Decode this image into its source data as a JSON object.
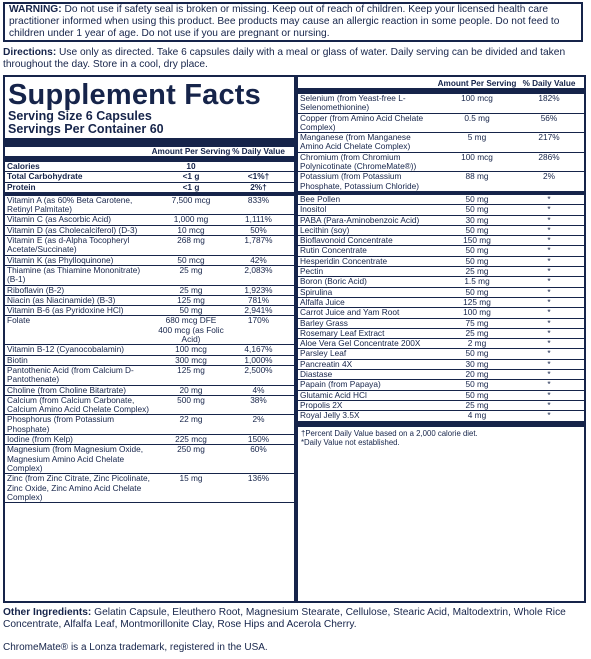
{
  "warning": {
    "label": "WARNING:",
    "text": " Do not use if safety seal is broken or missing. Keep out of reach of children. Keep your licensed health care practitioner informed when using this product. Bee products may cause an allergic reaction in some people. Do not feed to children under 1 year of age. Do not use if you are pregnant or nursing."
  },
  "directions": {
    "label": "Directions:",
    "text": " Use only as directed. Take 6 capsules daily with a meal or glass of water. Daily serving can be divided and taken throughout the day. Store in a cool, dry place."
  },
  "facts": {
    "title": "Supplement Facts",
    "serving_size": "Serving Size 6 Capsules",
    "servings_per_container": "Servings Per Container 60",
    "col_amount": "Amount Per Serving",
    "col_dv": "% Daily Value"
  },
  "left_rows": [
    {
      "name": "Calories",
      "amount": "10",
      "dv": "",
      "bold": true
    },
    {
      "name": "Total Carbohydrate",
      "amount": "<1 g",
      "dv": "<1%†",
      "bold": true
    },
    {
      "name": "Protein",
      "amount": "<1 g",
      "dv": "2%†",
      "bold": true,
      "thick": true
    },
    {
      "name": "Vitamin A (as 60% Beta Carotene, Retinyl Palmitate)",
      "amount": "7,500 mcg",
      "dv": "833%"
    },
    {
      "name": "Vitamin C (as Ascorbic Acid)",
      "amount": "1,000 mg",
      "dv": "1,111%"
    },
    {
      "name": "Vitamin D (as Cholecalciferol) (D-3)",
      "amount": "10 mcg",
      "dv": "50%"
    },
    {
      "name": "Vitamin E (as d-Alpha Tocopheryl Acetate/Succinate)",
      "amount": "268 mg",
      "dv": "1,787%"
    },
    {
      "name": "Vitamin K (as Phylloquinone)",
      "amount": "50 mcg",
      "dv": "42%"
    },
    {
      "name": "Thiamine (as Thiamine Mononitrate) (B-1)",
      "amount": "25 mg",
      "dv": "2,083%"
    },
    {
      "name": "Riboflavin (B-2)",
      "amount": "25 mg",
      "dv": "1,923%"
    },
    {
      "name": "Niacin (as Niacinamide) (B-3)",
      "amount": "125 mg",
      "dv": "781%"
    },
    {
      "name": "Vitamin B-6 (as Pyridoxine HCl)",
      "amount": "50 mg",
      "dv": "2,941%"
    },
    {
      "name": "Folate",
      "amount": "680 mcg DFE\n400 mcg (as Folic Acid)",
      "dv": "170%"
    },
    {
      "name": "Vitamin B-12 (Cyanocobalamin)",
      "amount": "100 mcg",
      "dv": "4,167%"
    },
    {
      "name": "Biotin",
      "amount": "300 mcg",
      "dv": "1,000%"
    },
    {
      "name": "Pantothenic Acid (from Calcium D-Pantothenate)",
      "amount": "125 mg",
      "dv": "2,500%"
    },
    {
      "name": "Choline (from Choline Bitartrate)",
      "amount": "20 mg",
      "dv": "4%"
    },
    {
      "name": "Calcium (from Calcium Carbonate, Calcium Amino Acid Chelate Complex)",
      "amount": "500 mg",
      "dv": "38%"
    },
    {
      "name": "Phosphorus (from Potassium Phosphate)",
      "amount": "22 mg",
      "dv": "2%"
    },
    {
      "name": "Iodine (from Kelp)",
      "amount": "225 mcg",
      "dv": "150%"
    },
    {
      "name": "Magnesium (from Magnesium Oxide, Magnesium Amino Acid Chelate Complex)",
      "amount": "250 mg",
      "dv": "60%"
    },
    {
      "name": "Zinc (from Zinc Citrate, Zinc Picolinate, Zinc Oxide, Zinc Amino Acid Chelate Complex)",
      "amount": "15 mg",
      "dv": "136%"
    }
  ],
  "right_rows": [
    {
      "name": "Selenium (from Yeast-free L-Selenomethionine)",
      "amount": "100 mcg",
      "dv": "182%"
    },
    {
      "name": "Copper (from Amino Acid Chelate Complex)",
      "amount": "0.5 mg",
      "dv": "56%"
    },
    {
      "name": "Manganese (from Manganese Amino Acid Chelate Complex)",
      "amount": "5 mg",
      "dv": "217%"
    },
    {
      "name": "Chromium (from Chromium Polynicotinate (ChromeMate®))",
      "amount": "100 mcg",
      "dv": "286%"
    },
    {
      "name": "Potassium (from Potassium Phosphate, Potassium Chloride)",
      "amount": "88 mg",
      "dv": "2%",
      "thick": true
    },
    {
      "name": "Bee Pollen",
      "amount": "50 mg",
      "dv": "*"
    },
    {
      "name": "Inositol",
      "amount": "50 mg",
      "dv": "*"
    },
    {
      "name": "PABA (Para-Aminobenzoic Acid)",
      "amount": "30 mg",
      "dv": "*"
    },
    {
      "name": "Lecithin (soy)",
      "amount": "50 mg",
      "dv": "*"
    },
    {
      "name": "Bioflavonoid Concentrate",
      "amount": "150 mg",
      "dv": "*"
    },
    {
      "name": "Rutin Concentrate",
      "amount": "50 mg",
      "dv": "*"
    },
    {
      "name": "Hesperidin Concentrate",
      "amount": "50 mg",
      "dv": "*"
    },
    {
      "name": "Pectin",
      "amount": "25 mg",
      "dv": "*"
    },
    {
      "name": "Boron (Boric Acid)",
      "amount": "1.5 mg",
      "dv": "*"
    },
    {
      "name": "Spirulina",
      "amount": "50 mg",
      "dv": "*"
    },
    {
      "name": "Alfalfa Juice",
      "amount": "125 mg",
      "dv": "*"
    },
    {
      "name": "Carrot Juice and Yam Root",
      "amount": "100 mg",
      "dv": "*"
    },
    {
      "name": "Barley Grass",
      "amount": "75 mg",
      "dv": "*"
    },
    {
      "name": "Rosemary Leaf Extract",
      "amount": "25 mg",
      "dv": "*"
    },
    {
      "name": "Aloe Vera Gel Concentrate 200X",
      "amount": "2 mg",
      "dv": "*"
    },
    {
      "name": "Parsley Leaf",
      "amount": "50 mg",
      "dv": "*"
    },
    {
      "name": "Pancreatin 4X",
      "amount": "30 mg",
      "dv": "*"
    },
    {
      "name": "Diastase",
      "amount": "20 mg",
      "dv": "*"
    },
    {
      "name": "Papain (from Papaya)",
      "amount": "50 mg",
      "dv": "*"
    },
    {
      "name": "Glutamic Acid HCl",
      "amount": "50 mg",
      "dv": "*"
    },
    {
      "name": "Propolis 2X",
      "amount": "25 mg",
      "dv": "*"
    },
    {
      "name": "Royal Jelly 3.5X",
      "amount": "4 mg",
      "dv": "*"
    }
  ],
  "footnotes": {
    "percent": "†Percent Daily Value based on a 2,000 calorie diet.",
    "not_established": "*Daily Value not established."
  },
  "other": {
    "label": "Other Ingredients:",
    "text": " Gelatin Capsule, Eleuthero Root, Magnesium Stearate, Cellulose, Stearic Acid, Maltodextrin, Whole Rice Concentrate, Alfalfa Leaf, Montmorillonite Clay, Rose Hips and Acerola Cherry."
  },
  "trademark": "ChromeMate® is a Lonza trademark, registered in the USA."
}
